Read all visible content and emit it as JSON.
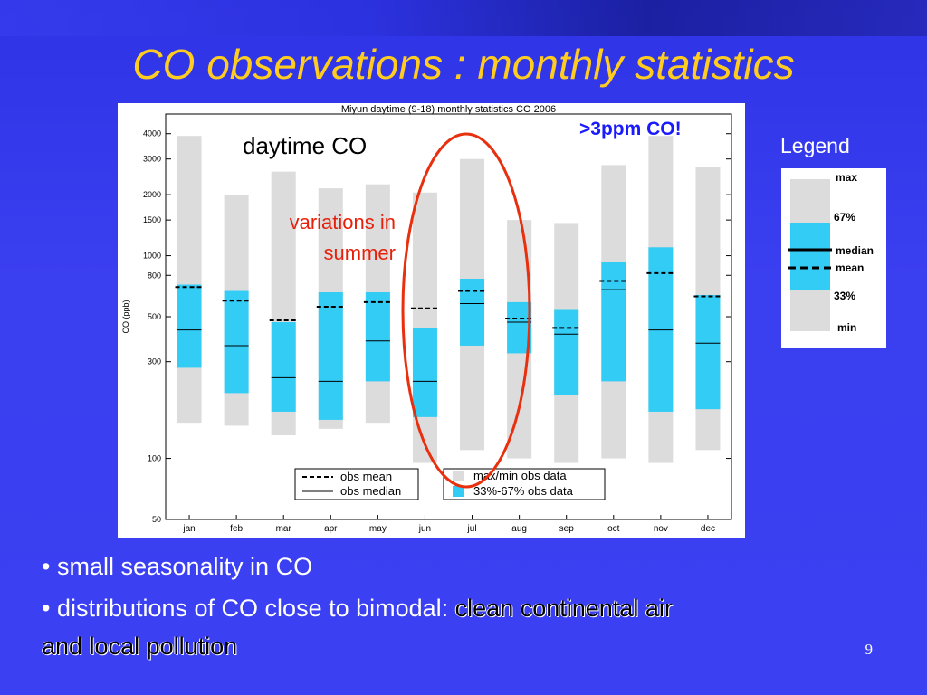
{
  "slide": {
    "title": "CO observations : monthly statistics",
    "legend_label": "Legend",
    "bullets": [
      {
        "bullet": "•",
        "text": "small seasonality in CO"
      },
      {
        "bullet": "•",
        "text": "distributions of CO close to bimodal: ",
        "highlight": "clean continental air",
        "line2": "and local pollution"
      }
    ],
    "page_number": "9"
  },
  "annotations": {
    "daytime": "daytime CO",
    "variations_line1": "variations in",
    "variations_line2": "summer",
    "ppm_alert": ">3ppm CO!",
    "colors": {
      "variations": "#e8200b",
      "alert": "#1a1aff",
      "ellipse": "#e8300f"
    }
  },
  "legend_box": {
    "labels": [
      "max",
      "67%",
      "median",
      "mean",
      "33%",
      "min"
    ],
    "colors": {
      "minmax": "#dcdcdc",
      "iqr": "#33ccf5"
    }
  },
  "chart_data": {
    "type": "bar",
    "title": "Miyun daytime (9-18) monthly statistics CO 2006",
    "ylabel": "CO (ppb)",
    "xlabel": "",
    "yscale": "log",
    "ylim": [
      50,
      5000
    ],
    "yticks": [
      50,
      100,
      300,
      500,
      800,
      1000,
      1500,
      2000,
      3000,
      4000
    ],
    "categories": [
      "jan",
      "feb",
      "mar",
      "apr",
      "may",
      "jun",
      "jul",
      "aug",
      "sep",
      "oct",
      "nov",
      "dec"
    ],
    "series": [
      {
        "name": "max/min obs data",
        "min": [
          150,
          145,
          130,
          140,
          150,
          95,
          110,
          100,
          95,
          100,
          95,
          110
        ],
        "max": [
          3900,
          2000,
          2600,
          2150,
          2250,
          2050,
          3000,
          1500,
          1450,
          2800,
          3900,
          2750
        ]
      },
      {
        "name": "33%-67% obs data",
        "low": [
          280,
          210,
          170,
          155,
          240,
          160,
          360,
          330,
          205,
          240,
          170,
          175
        ],
        "high": [
          720,
          670,
          470,
          660,
          660,
          440,
          770,
          590,
          540,
          930,
          1100,
          640
        ]
      },
      {
        "name": "obs median",
        "values": [
          430,
          360,
          250,
          240,
          380,
          240,
          580,
          470,
          410,
          680,
          430,
          370
        ]
      },
      {
        "name": "obs mean",
        "values": [
          700,
          600,
          480,
          560,
          590,
          550,
          670,
          490,
          440,
          750,
          820,
          630
        ]
      }
    ],
    "legend": [
      "obs mean",
      "obs median",
      "max/min obs data",
      "33%-67% obs data"
    ],
    "legend_position": "bottom-center",
    "colors": {
      "minmax": "#dcdcdc",
      "iqr": "#33ccf5",
      "line": "#000000"
    }
  }
}
